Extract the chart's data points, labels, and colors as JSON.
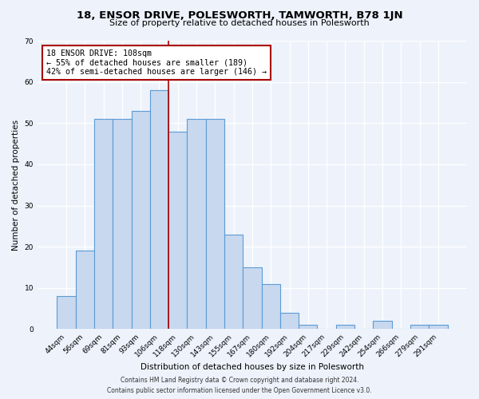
{
  "title": "18, ENSOR DRIVE, POLESWORTH, TAMWORTH, B78 1JN",
  "subtitle": "Size of property relative to detached houses in Polesworth",
  "xlabel": "Distribution of detached houses by size in Polesworth",
  "ylabel": "Number of detached properties",
  "categories": [
    "44sqm",
    "56sqm",
    "69sqm",
    "81sqm",
    "93sqm",
    "106sqm",
    "118sqm",
    "130sqm",
    "143sqm",
    "155sqm",
    "167sqm",
    "180sqm",
    "192sqm",
    "204sqm",
    "217sqm",
    "229sqm",
    "242sqm",
    "254sqm",
    "266sqm",
    "279sqm",
    "291sqm"
  ],
  "values": [
    8,
    19,
    51,
    51,
    53,
    58,
    48,
    51,
    51,
    23,
    15,
    11,
    4,
    1,
    0,
    1,
    0,
    2,
    0,
    1,
    1
  ],
  "bar_color": "#c8d8ee",
  "bar_edge_color": "#5b9bd5",
  "vline_color": "#aa0000",
  "annotation_text": "18 ENSOR DRIVE: 108sqm\n← 55% of detached houses are smaller (189)\n42% of semi-detached houses are larger (146) →",
  "annotation_box_color": "#ffffff",
  "annotation_box_edge": "#aa0000",
  "ylim": [
    0,
    70
  ],
  "yticks": [
    0,
    10,
    20,
    30,
    40,
    50,
    60,
    70
  ],
  "footer_line1": "Contains HM Land Registry data © Crown copyright and database right 2024.",
  "footer_line2": "Contains public sector information licensed under the Open Government Licence v3.0.",
  "background_color": "#edf2fb",
  "grid_color": "#ffffff",
  "fig_width": 6.0,
  "fig_height": 5.0,
  "vline_x_idx": 5.5
}
